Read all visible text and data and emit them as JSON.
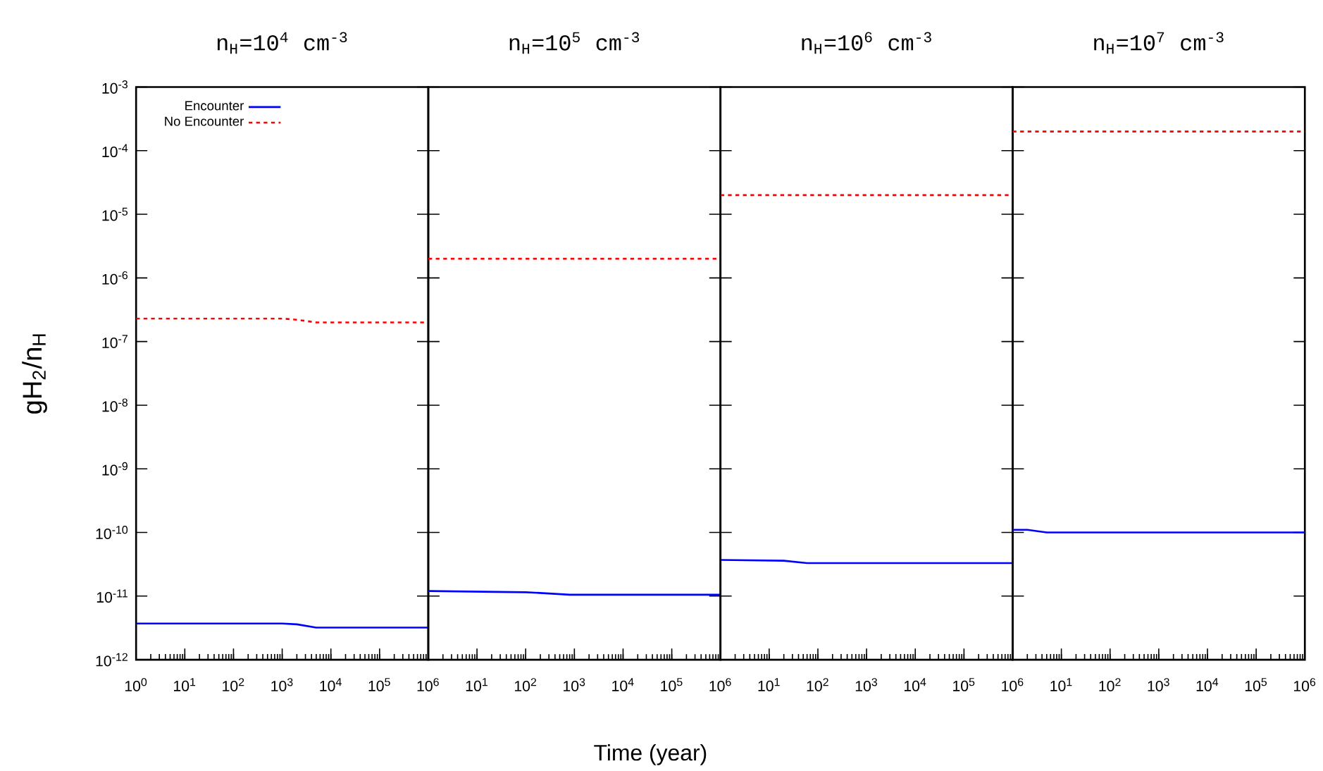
{
  "chart_data": [
    {
      "type": "line",
      "title": "n$_{H}$=10$^{4}$ cm$^{-3}$",
      "ylabel": "gH$_{2}$/n$_{H}$",
      "log": "xy",
      "legend": "top left",
      "xlim": [
        1,
        1000000
      ],
      "ylim": [
        1e-12,
        0.001
      ],
      "xticks": [
        {
          "value": 1,
          "label": "10$^{0}$"
        },
        {
          "value": 10,
          "label": "10$^{1}$"
        },
        {
          "value": 100,
          "label": "10$^{2}$"
        },
        {
          "value": 1000,
          "label": "10$^{3}$"
        },
        {
          "value": 10000,
          "label": "10$^{4}$"
        },
        {
          "value": 100000,
          "label": "10$^{5}$"
        },
        {
          "value": 1000000,
          "label": "10$^{6}$"
        }
      ],
      "yticks": [
        {
          "value": 1e-12,
          "label": "10$^{-12}$"
        },
        {
          "value": 1e-11,
          "label": "10$^{-11}$"
        },
        {
          "value": 1e-10,
          "label": "10$^{-10}$"
        },
        {
          "value": 1e-09,
          "label": "10$^{-9}$"
        },
        {
          "value": 1e-08,
          "label": "10$^{-8}$"
        },
        {
          "value": 1e-07,
          "label": "10$^{-7}$"
        },
        {
          "value": 1e-06,
          "label": "10$^{-6}$"
        },
        {
          "value": 1e-05,
          "label": "10$^{-5}$"
        },
        {
          "value": 0.0001,
          "label": "10$^{-4}$"
        },
        {
          "value": 0.001,
          "label": "10$^{-3}$"
        }
      ],
      "series": [
        {
          "name": "Encounter",
          "color": "#0000ff",
          "line_style": "solid",
          "x": [
            1,
            1000,
            2000,
            5000,
            1000000
          ],
          "values": [
            3.7e-12,
            3.7e-12,
            3.6e-12,
            3.2e-12,
            3.2e-12
          ]
        },
        {
          "name": "No Encounter",
          "color": "#ff0000",
          "line_style": "dashed",
          "x": [
            1,
            1000,
            2000,
            5000,
            1000000
          ],
          "values": [
            2.3e-07,
            2.3e-07,
            2.2e-07,
            2e-07,
            2e-07
          ]
        }
      ]
    },
    {
      "type": "line",
      "title": "n$_{H}$=10$^{5}$ cm$^{-3}$",
      "xlabel": "Time (year)",
      "log": "xy",
      "tick_labels": "x",
      "xlim": [
        1,
        1000000
      ],
      "ylim": [
        1e-12,
        0.001
      ],
      "xticks": [
        {
          "value": 1,
          "label": null
        },
        {
          "value": 10,
          "label": "10$^{1}$"
        },
        {
          "value": 100,
          "label": "10$^{2}$"
        },
        {
          "value": 1000,
          "label": "10$^{3}$"
        },
        {
          "value": 10000,
          "label": "10$^{4}$"
        },
        {
          "value": 100000,
          "label": "10$^{5}$"
        },
        {
          "value": 1000000,
          "label": "10$^{6}$"
        }
      ],
      "yticks": [
        {
          "value": 1e-12,
          "label": null
        },
        {
          "value": 1e-11,
          "label": null
        },
        {
          "value": 1e-10,
          "label": null
        },
        {
          "value": 1e-09,
          "label": null
        },
        {
          "value": 1e-08,
          "label": null
        },
        {
          "value": 1e-07,
          "label": null
        },
        {
          "value": 1e-06,
          "label": null
        },
        {
          "value": 1e-05,
          "label": null
        },
        {
          "value": 0.0001,
          "label": null
        },
        {
          "value": 0.001,
          "label": null
        }
      ],
      "series": [
        {
          "color": "#0000ff",
          "line_style": "solid",
          "x": [
            1,
            100,
            300,
            800,
            1000000
          ],
          "values": [
            1.2e-11,
            1.15e-11,
            1.1e-11,
            1.05e-11,
            1.05e-11
          ]
        },
        {
          "color": "#ff0000",
          "line_style": "dashed",
          "x": [
            1,
            1000000
          ],
          "values": [
            2e-06,
            2e-06
          ]
        }
      ]
    },
    {
      "type": "line",
      "title": "n$_{H}$=10$^{6}$ cm$^{-3}$",
      "log": "xy",
      "tick_labels": "x",
      "xlim": [
        1,
        1000000
      ],
      "ylim": [
        1e-12,
        0.001
      ],
      "xticks": [
        {
          "value": 1,
          "label": null
        },
        {
          "value": 10,
          "label": "10$^{1}$"
        },
        {
          "value": 100,
          "label": "10$^{2}$"
        },
        {
          "value": 1000,
          "label": "10$^{3}$"
        },
        {
          "value": 10000,
          "label": "10$^{4}$"
        },
        {
          "value": 100000,
          "label": "10$^{5}$"
        },
        {
          "value": 1000000,
          "label": "10$^{6}$"
        }
      ],
      "yticks": [
        {
          "value": 1e-12,
          "label": null
        },
        {
          "value": 1e-11,
          "label": null
        },
        {
          "value": 1e-10,
          "label": null
        },
        {
          "value": 1e-09,
          "label": null
        },
        {
          "value": 1e-08,
          "label": null
        },
        {
          "value": 1e-07,
          "label": null
        },
        {
          "value": 1e-06,
          "label": null
        },
        {
          "value": 1e-05,
          "label": null
        },
        {
          "value": 0.0001,
          "label": null
        },
        {
          "value": 0.001,
          "label": null
        }
      ],
      "series": [
        {
          "color": "#0000ff",
          "line_style": "solid",
          "x": [
            1,
            20,
            60,
            1000000
          ],
          "values": [
            3.7e-11,
            3.6e-11,
            3.3e-11,
            3.3e-11
          ]
        },
        {
          "color": "#ff0000",
          "line_style": "dashed",
          "x": [
            1,
            1000000
          ],
          "values": [
            2e-05,
            2e-05
          ]
        }
      ]
    },
    {
      "type": "line",
      "title": "n$_{H}$=10$^{7}$ cm$^{-3}$",
      "log": "xy",
      "tick_labels": "x",
      "xlim": [
        1,
        1000000
      ],
      "ylim": [
        1e-12,
        0.001
      ],
      "xticks": [
        {
          "value": 1,
          "label": null
        },
        {
          "value": 10,
          "label": "10$^{1}$"
        },
        {
          "value": 100,
          "label": "10$^{2}$"
        },
        {
          "value": 1000,
          "label": "10$^{3}$"
        },
        {
          "value": 10000,
          "label": "10$^{4}$"
        },
        {
          "value": 100000,
          "label": "10$^{5}$"
        },
        {
          "value": 1000000,
          "label": "10$^{6}$"
        }
      ],
      "yticks": [
        {
          "value": 1e-12,
          "label": null
        },
        {
          "value": 1e-11,
          "label": null
        },
        {
          "value": 1e-10,
          "label": null
        },
        {
          "value": 1e-09,
          "label": null
        },
        {
          "value": 1e-08,
          "label": null
        },
        {
          "value": 1e-07,
          "label": null
        },
        {
          "value": 1e-06,
          "label": null
        },
        {
          "value": 1e-05,
          "label": null
        },
        {
          "value": 0.0001,
          "label": null
        },
        {
          "value": 0.001,
          "label": null
        }
      ],
      "series": [
        {
          "color": "#0000ff",
          "line_style": "solid",
          "x": [
            1,
            2,
            5,
            1000000
          ],
          "values": [
            1.1e-10,
            1.1e-10,
            1e-10,
            1e-10
          ]
        },
        {
          "color": "#ff0000",
          "line_style": "dashed",
          "x": [
            1,
            1000000
          ],
          "values": [
            0.0002,
            0.0002
          ]
        }
      ]
    }
  ]
}
